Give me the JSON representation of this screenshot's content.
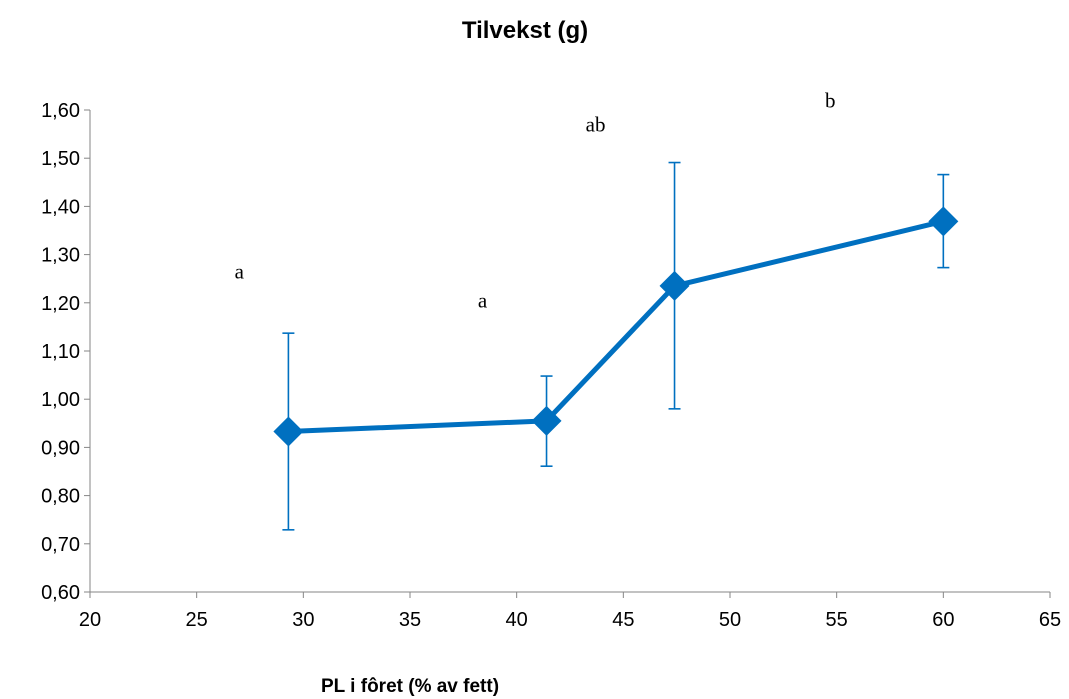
{
  "chart_data": {
    "type": "scatter",
    "title": "Tilvekst (g)",
    "xlabel": "PL i fôret (% av fett)",
    "ylabel": "",
    "xlim": [
      20,
      65
    ],
    "ylim": [
      0.6,
      1.6
    ],
    "x_ticks": [
      "20",
      "25",
      "30",
      "35",
      "40",
      "45",
      "50",
      "55",
      "60",
      "65"
    ],
    "x_tick_values": [
      20,
      25,
      30,
      35,
      40,
      45,
      50,
      55,
      60,
      65
    ],
    "y_ticks": [
      "0,60",
      "0,70",
      "0,80",
      "0,90",
      "1,00",
      "1,10",
      "1,20",
      "1,30",
      "1,40",
      "1,50",
      "1,60"
    ],
    "y_tick_values": [
      0.6,
      0.7,
      0.8,
      0.9,
      1.0,
      1.1,
      1.2,
      1.3,
      1.4,
      1.5,
      1.6
    ],
    "grid": false,
    "legend": "none",
    "series": [
      {
        "x": [
          29.3,
          41.4,
          47.4,
          60.0
        ],
        "y": [
          0.933,
          0.955,
          1.235,
          1.369
        ],
        "error_low": [
          0.729,
          0.861,
          0.98,
          1.273
        ],
        "error_high": [
          1.137,
          1.048,
          1.491,
          1.466
        ],
        "marker": "diamond",
        "line": true,
        "color": "#0070C0"
      }
    ],
    "annotations": [
      {
        "text": "a",
        "x": 27.0,
        "y": 1.265
      },
      {
        "text": "a",
        "x": 38.4,
        "y": 1.205
      },
      {
        "text": "ab",
        "x": 43.7,
        "y": 1.57
      },
      {
        "text": "b",
        "x": 54.7,
        "y": 1.62
      }
    ],
    "colors": {
      "series": "#0070C0",
      "axis": "#868686"
    }
  }
}
